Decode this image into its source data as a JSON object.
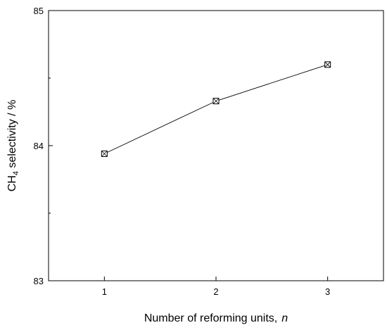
{
  "chart_data": {
    "type": "line",
    "title": "",
    "xlabel": "Number of reforming units,",
    "xlabel_var": "n",
    "ylabel_prefix": "CH",
    "ylabel_sub": "4",
    "ylabel_suffix": " selectivity / %",
    "xlim": [
      0.5,
      3.5
    ],
    "ylim": [
      83,
      85
    ],
    "xticks": [
      1,
      2,
      3
    ],
    "xtick_labels": [
      "1",
      "2",
      "3"
    ],
    "yticks_major": [
      83,
      84,
      85
    ],
    "ytick_labels": [
      "83",
      "84",
      "85"
    ],
    "yticks_minor": [
      83.5,
      84.5
    ],
    "grid": false,
    "series": [
      {
        "marker": "square-with-x",
        "x": [
          1,
          2,
          3
        ],
        "y": [
          83.94,
          84.33,
          84.6
        ]
      }
    ]
  }
}
